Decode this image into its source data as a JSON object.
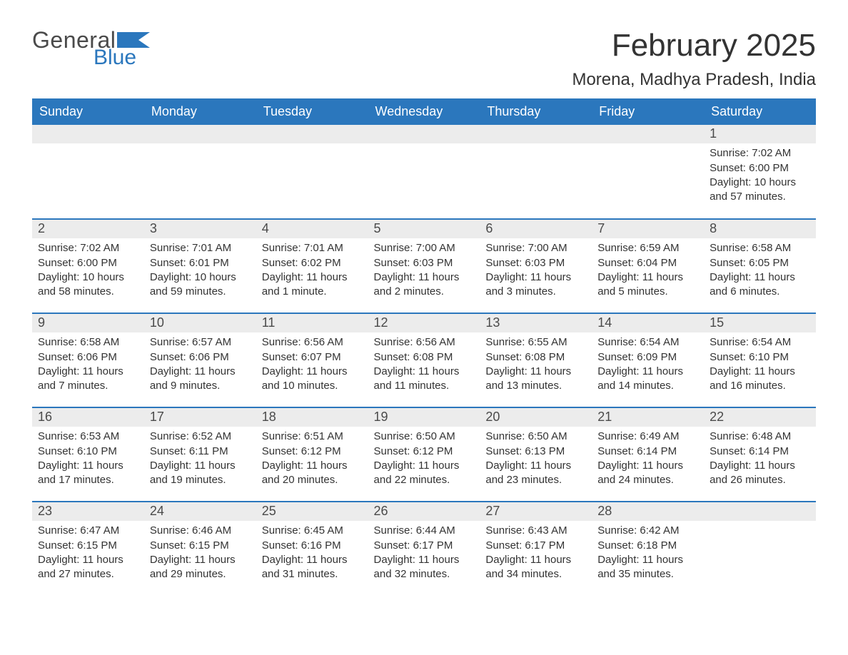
{
  "logo": {
    "general": "General",
    "blue": "Blue"
  },
  "title": "February 2025",
  "location": "Morena, Madhya Pradesh, India",
  "colors": {
    "header_bg": "#2b77bd",
    "header_text": "#ffffff",
    "daynum_bg": "#ececec",
    "row_border": "#2b77bd",
    "body_text": "#333333",
    "logo_blue": "#2b77bd",
    "logo_gray": "#4a4a4a",
    "page_bg": "#ffffff"
  },
  "layout": {
    "columns": 7,
    "rows": 5,
    "first_weekday_index": 6,
    "days_in_month": 28,
    "font_family": "Arial",
    "body_fontsize": 15,
    "header_fontsize": 18,
    "title_fontsize": 44,
    "location_fontsize": 24
  },
  "weekdays": [
    "Sunday",
    "Monday",
    "Tuesday",
    "Wednesday",
    "Thursday",
    "Friday",
    "Saturday"
  ],
  "days": [
    {
      "n": 1,
      "sunrise": "7:02 AM",
      "sunset": "6:00 PM",
      "daylight": "10 hours and 57 minutes."
    },
    {
      "n": 2,
      "sunrise": "7:02 AM",
      "sunset": "6:00 PM",
      "daylight": "10 hours and 58 minutes."
    },
    {
      "n": 3,
      "sunrise": "7:01 AM",
      "sunset": "6:01 PM",
      "daylight": "10 hours and 59 minutes."
    },
    {
      "n": 4,
      "sunrise": "7:01 AM",
      "sunset": "6:02 PM",
      "daylight": "11 hours and 1 minute."
    },
    {
      "n": 5,
      "sunrise": "7:00 AM",
      "sunset": "6:03 PM",
      "daylight": "11 hours and 2 minutes."
    },
    {
      "n": 6,
      "sunrise": "7:00 AM",
      "sunset": "6:03 PM",
      "daylight": "11 hours and 3 minutes."
    },
    {
      "n": 7,
      "sunrise": "6:59 AM",
      "sunset": "6:04 PM",
      "daylight": "11 hours and 5 minutes."
    },
    {
      "n": 8,
      "sunrise": "6:58 AM",
      "sunset": "6:05 PM",
      "daylight": "11 hours and 6 minutes."
    },
    {
      "n": 9,
      "sunrise": "6:58 AM",
      "sunset": "6:06 PM",
      "daylight": "11 hours and 7 minutes."
    },
    {
      "n": 10,
      "sunrise": "6:57 AM",
      "sunset": "6:06 PM",
      "daylight": "11 hours and 9 minutes."
    },
    {
      "n": 11,
      "sunrise": "6:56 AM",
      "sunset": "6:07 PM",
      "daylight": "11 hours and 10 minutes."
    },
    {
      "n": 12,
      "sunrise": "6:56 AM",
      "sunset": "6:08 PM",
      "daylight": "11 hours and 11 minutes."
    },
    {
      "n": 13,
      "sunrise": "6:55 AM",
      "sunset": "6:08 PM",
      "daylight": "11 hours and 13 minutes."
    },
    {
      "n": 14,
      "sunrise": "6:54 AM",
      "sunset": "6:09 PM",
      "daylight": "11 hours and 14 minutes."
    },
    {
      "n": 15,
      "sunrise": "6:54 AM",
      "sunset": "6:10 PM",
      "daylight": "11 hours and 16 minutes."
    },
    {
      "n": 16,
      "sunrise": "6:53 AM",
      "sunset": "6:10 PM",
      "daylight": "11 hours and 17 minutes."
    },
    {
      "n": 17,
      "sunrise": "6:52 AM",
      "sunset": "6:11 PM",
      "daylight": "11 hours and 19 minutes."
    },
    {
      "n": 18,
      "sunrise": "6:51 AM",
      "sunset": "6:12 PM",
      "daylight": "11 hours and 20 minutes."
    },
    {
      "n": 19,
      "sunrise": "6:50 AM",
      "sunset": "6:12 PM",
      "daylight": "11 hours and 22 minutes."
    },
    {
      "n": 20,
      "sunrise": "6:50 AM",
      "sunset": "6:13 PM",
      "daylight": "11 hours and 23 minutes."
    },
    {
      "n": 21,
      "sunrise": "6:49 AM",
      "sunset": "6:14 PM",
      "daylight": "11 hours and 24 minutes."
    },
    {
      "n": 22,
      "sunrise": "6:48 AM",
      "sunset": "6:14 PM",
      "daylight": "11 hours and 26 minutes."
    },
    {
      "n": 23,
      "sunrise": "6:47 AM",
      "sunset": "6:15 PM",
      "daylight": "11 hours and 27 minutes."
    },
    {
      "n": 24,
      "sunrise": "6:46 AM",
      "sunset": "6:15 PM",
      "daylight": "11 hours and 29 minutes."
    },
    {
      "n": 25,
      "sunrise": "6:45 AM",
      "sunset": "6:16 PM",
      "daylight": "11 hours and 31 minutes."
    },
    {
      "n": 26,
      "sunrise": "6:44 AM",
      "sunset": "6:17 PM",
      "daylight": "11 hours and 32 minutes."
    },
    {
      "n": 27,
      "sunrise": "6:43 AM",
      "sunset": "6:17 PM",
      "daylight": "11 hours and 34 minutes."
    },
    {
      "n": 28,
      "sunrise": "6:42 AM",
      "sunset": "6:18 PM",
      "daylight": "11 hours and 35 minutes."
    }
  ],
  "labels": {
    "sunrise_prefix": "Sunrise: ",
    "sunset_prefix": "Sunset: ",
    "daylight_prefix": "Daylight: "
  }
}
